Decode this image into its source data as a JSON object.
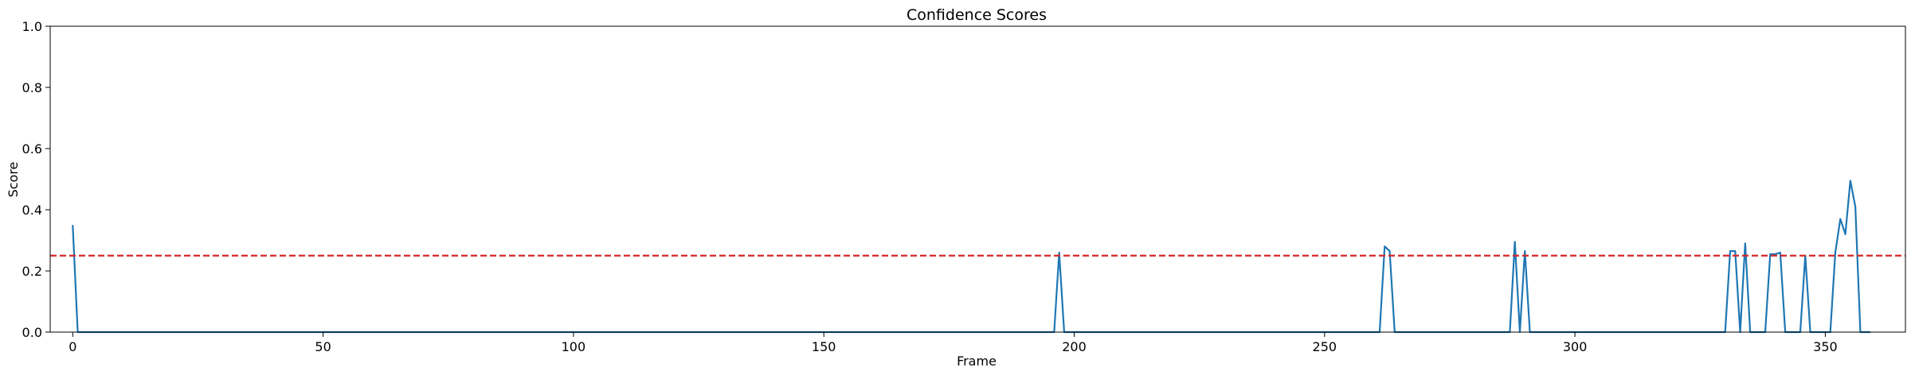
{
  "chart_data": {
    "type": "line",
    "title": "Confidence Scores",
    "xlabel": "Frame",
    "ylabel": "Score",
    "xlim": [
      -4.5,
      366
    ],
    "ylim": [
      0,
      1
    ],
    "x_ticks": [
      0,
      50,
      100,
      150,
      200,
      250,
      300,
      350
    ],
    "y_ticks": [
      0.0,
      0.2,
      0.4,
      0.6,
      0.8,
      1.0
    ],
    "x_tick_labels": [
      "0",
      "50",
      "100",
      "150",
      "200",
      "250",
      "300",
      "350"
    ],
    "y_tick_labels": [
      "0.0",
      "0.2",
      "0.4",
      "0.6",
      "0.8",
      "1.0"
    ],
    "grid": false,
    "line_color": "#1f77b4",
    "threshold": {
      "y": 0.25,
      "color": "#d62728",
      "style": "dashed"
    },
    "series": [
      {
        "points": [
          [
            0,
            0.35
          ],
          [
            1,
            0.0
          ],
          [
            196,
            0.0
          ],
          [
            197,
            0.26
          ],
          [
            198,
            0.0
          ],
          [
            261,
            0.0
          ],
          [
            262,
            0.28
          ],
          [
            263,
            0.265
          ],
          [
            264,
            0.0
          ],
          [
            287,
            0.0
          ],
          [
            288,
            0.295
          ],
          [
            289,
            0.0
          ],
          [
            290,
            0.265
          ],
          [
            291,
            0.0
          ],
          [
            330,
            0.0
          ],
          [
            331,
            0.265
          ],
          [
            332,
            0.265
          ],
          [
            333,
            0.0
          ],
          [
            334,
            0.29
          ],
          [
            335,
            0.0
          ],
          [
            338,
            0.0
          ],
          [
            339,
            0.255
          ],
          [
            340,
            0.255
          ],
          [
            341,
            0.26
          ],
          [
            342,
            0.0
          ],
          [
            345,
            0.0
          ],
          [
            346,
            0.25
          ],
          [
            347,
            0.0
          ],
          [
            350,
            0.0
          ],
          [
            351,
            0.0
          ],
          [
            352,
            0.26
          ],
          [
            353,
            0.37
          ],
          [
            354,
            0.32
          ],
          [
            355,
            0.495
          ],
          [
            356,
            0.41
          ],
          [
            357,
            0.0
          ],
          [
            359,
            0.0
          ]
        ]
      }
    ]
  }
}
